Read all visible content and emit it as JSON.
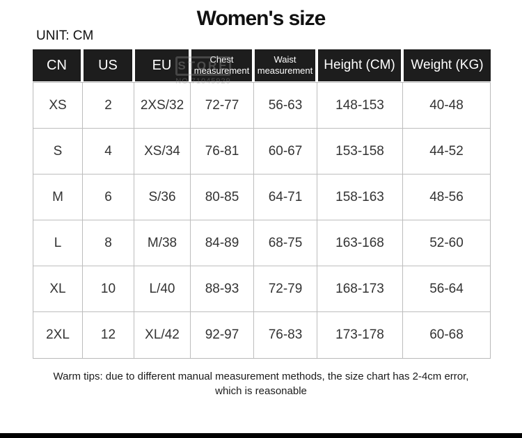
{
  "page": {
    "title": "Women's size",
    "unit_label": "UNIT: CM",
    "footer_line1": "Warm tips: due to different manual measurement methods, the size chart has 2-4cm error,",
    "footer_line2": "which is reasonable"
  },
  "watermark": {
    "text": "STORE",
    "number": "NO.71045929"
  },
  "colors": {
    "header_bg": "#1d1d1d",
    "header_text": "#ffffff",
    "grid_line": "#bdbdbd",
    "body_text": "#333333",
    "bottom_bar": "#000000"
  },
  "chart_data": {
    "type": "table",
    "title": "Women's size",
    "unit": "CM",
    "columns": [
      "CN",
      "US",
      "EU",
      "Chest measurement",
      "Waist measurement",
      "Height (CM)",
      "Weight (KG)"
    ],
    "rows": [
      [
        "XS",
        "2",
        "2XS/32",
        "72-77",
        "56-63",
        "148-153",
        "40-48"
      ],
      [
        "S",
        "4",
        "XS/34",
        "76-81",
        "60-67",
        "153-158",
        "44-52"
      ],
      [
        "M",
        "6",
        "S/36",
        "80-85",
        "64-71",
        "158-163",
        "48-56"
      ],
      [
        "L",
        "8",
        "M/38",
        "84-89",
        "68-75",
        "163-168",
        "52-60"
      ],
      [
        "XL",
        "10",
        "L/40",
        "88-93",
        "72-79",
        "168-173",
        "56-64"
      ],
      [
        "2XL",
        "12",
        "XL/42",
        "92-97",
        "76-83",
        "173-178",
        "60-68"
      ]
    ]
  }
}
